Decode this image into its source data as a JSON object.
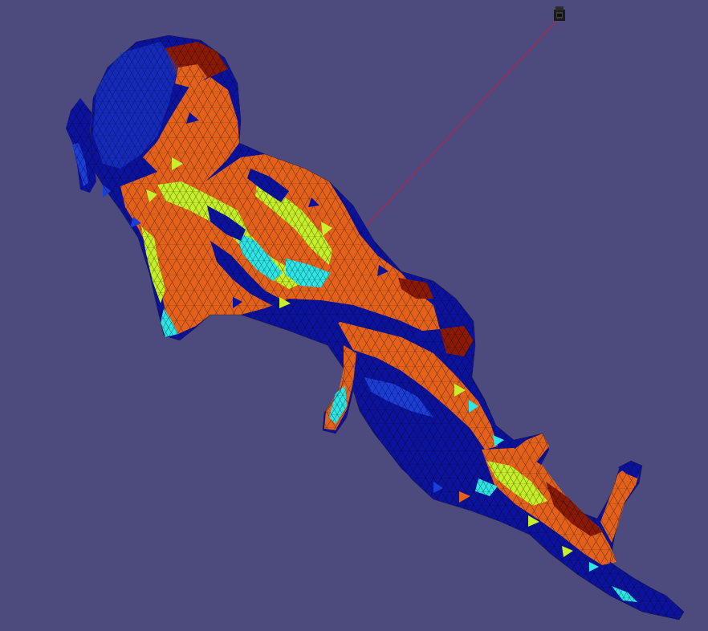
{
  "scene": {
    "background_color": "#4d4a7e",
    "object": "triangulated-surface-mesh",
    "colormap": {
      "dark_blue": "#0b139c",
      "blue": "#1b3fd6",
      "cyan": "#2ee6e6",
      "yellow_green": "#c8f02a",
      "orange": "#e4611c",
      "dark_red": "#8a1a06"
    },
    "light_indicator": {
      "icon": "camera-light-icon",
      "line_color": "#b8234a"
    }
  }
}
